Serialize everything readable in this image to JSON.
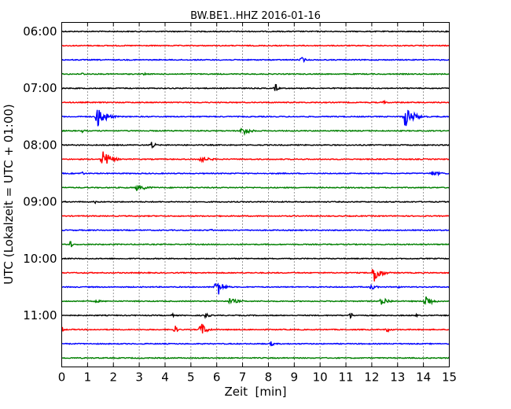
{
  "chart_data": {
    "type": "line",
    "title": "BW.BE1..HHZ 2016-01-16",
    "xlabel": "Zeit  [min]",
    "ylabel": "UTC (Lokalzeit = UTC + 01:00)",
    "xlim": [
      0,
      15
    ],
    "x_ticks": [
      "0",
      "1",
      "2",
      "3",
      "4",
      "5",
      "6",
      "7",
      "8",
      "9",
      "10",
      "11",
      "12",
      "13",
      "14",
      "15"
    ],
    "y_ticks": [
      "06:00",
      "07:00",
      "08:00",
      "09:00",
      "10:00",
      "11:00"
    ],
    "grid": true,
    "traces": [
      {
        "start": "06:00",
        "color": "#000000",
        "events": []
      },
      {
        "start": "06:15",
        "color": "#ff0000",
        "events": []
      },
      {
        "start": "06:30",
        "color": "#0000ff",
        "events": [
          {
            "t": 9.3,
            "amp": 4,
            "dur": 0.4
          }
        ]
      },
      {
        "start": "06:45",
        "color": "#008000",
        "events": [
          {
            "t": 0.8,
            "amp": 2,
            "dur": 0.3
          },
          {
            "t": 3.2,
            "amp": 2,
            "dur": 0.3
          }
        ]
      },
      {
        "start": "07:00",
        "color": "#000000",
        "events": [
          {
            "t": 8.3,
            "amp": 6,
            "dur": 0.2
          }
        ]
      },
      {
        "start": "07:15",
        "color": "#ff0000",
        "events": [
          {
            "t": 12.5,
            "amp": 3,
            "dur": 0.2
          }
        ]
      },
      {
        "start": "07:30",
        "color": "#0000ff",
        "events": [
          {
            "t": 1.4,
            "amp": 15,
            "dur": 0.8
          },
          {
            "t": 13.3,
            "amp": 14,
            "dur": 0.9
          }
        ]
      },
      {
        "start": "07:45",
        "color": "#008000",
        "events": [
          {
            "t": 7.0,
            "amp": 7,
            "dur": 0.7
          },
          {
            "t": 0.8,
            "amp": 2,
            "dur": 0.5
          }
        ]
      },
      {
        "start": "08:00",
        "color": "#000000",
        "events": [
          {
            "t": 3.5,
            "amp": 6,
            "dur": 0.3
          }
        ]
      },
      {
        "start": "08:15",
        "color": "#ff0000",
        "events": [
          {
            "t": 1.6,
            "amp": 12,
            "dur": 0.8
          },
          {
            "t": 5.3,
            "amp": 4,
            "dur": 1.3
          }
        ]
      },
      {
        "start": "08:30",
        "color": "#0000ff",
        "events": [
          {
            "t": 0.8,
            "amp": 3,
            "dur": 0.2
          },
          {
            "t": 14.3,
            "amp": 3,
            "dur": 1.3
          }
        ]
      },
      {
        "start": "08:45",
        "color": "#008000",
        "events": [
          {
            "t": 2.9,
            "amp": 4,
            "dur": 1.3
          }
        ]
      },
      {
        "start": "09:00",
        "color": "#000000",
        "events": [
          {
            "t": 1.3,
            "amp": 2,
            "dur": 0.2
          }
        ]
      },
      {
        "start": "09:15",
        "color": "#ff0000",
        "events": []
      },
      {
        "start": "09:30",
        "color": "#0000ff",
        "events": [
          {
            "t": 5.8,
            "amp": 2,
            "dur": 0.3
          }
        ]
      },
      {
        "start": "09:45",
        "color": "#008000",
        "events": [
          {
            "t": 0.35,
            "amp": 6,
            "dur": 0.15
          }
        ]
      },
      {
        "start": "10:00",
        "color": "#000000",
        "events": []
      },
      {
        "start": "10:15",
        "color": "#ff0000",
        "events": [
          {
            "t": 12.1,
            "amp": 13,
            "dur": 0.7
          }
        ]
      },
      {
        "start": "10:30",
        "color": "#0000ff",
        "events": [
          {
            "t": 6.0,
            "amp": 14,
            "dur": 0.6
          },
          {
            "t": 12.0,
            "amp": 4,
            "dur": 0.5
          },
          {
            "t": 13.0,
            "amp": 2,
            "dur": 0.3
          }
        ]
      },
      {
        "start": "10:45",
        "color": "#008000",
        "events": [
          {
            "t": 1.3,
            "amp": 2,
            "dur": 0.8
          },
          {
            "t": 6.5,
            "amp": 4,
            "dur": 1.0
          },
          {
            "t": 12.4,
            "amp": 6,
            "dur": 0.7
          },
          {
            "t": 14.1,
            "amp": 9,
            "dur": 0.6
          }
        ]
      },
      {
        "start": "11:00",
        "color": "#000000",
        "events": [
          {
            "t": 5.6,
            "amp": 5,
            "dur": 0.3
          },
          {
            "t": 11.2,
            "amp": 5,
            "dur": 0.2
          },
          {
            "t": 4.3,
            "amp": 2,
            "dur": 0.2
          },
          {
            "t": 13.7,
            "amp": 2,
            "dur": 0.3
          }
        ]
      },
      {
        "start": "11:15",
        "color": "#ff0000",
        "events": [
          {
            "t": 0.0,
            "amp": 5,
            "dur": 0.2
          },
          {
            "t": 4.4,
            "amp": 5,
            "dur": 0.3
          },
          {
            "t": 5.4,
            "amp": 9,
            "dur": 0.6
          },
          {
            "t": 12.6,
            "amp": 3,
            "dur": 0.5
          }
        ]
      },
      {
        "start": "11:30",
        "color": "#0000ff",
        "events": [
          {
            "t": 8.1,
            "amp": 3,
            "dur": 0.5
          }
        ]
      },
      {
        "start": "11:45",
        "color": "#008000",
        "events": []
      }
    ]
  }
}
